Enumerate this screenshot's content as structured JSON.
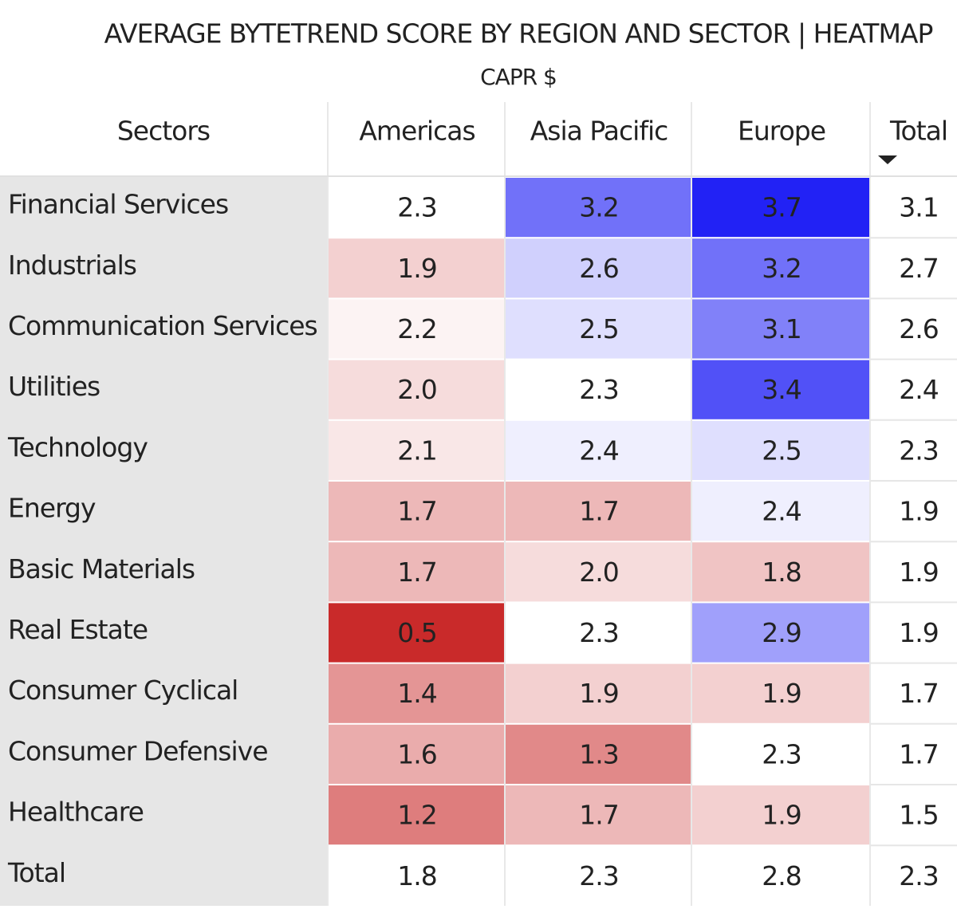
{
  "chart_data": {
    "type": "heatmap",
    "title": "AVERAGE BYTETREND SCORE BY REGION AND SECTOR | HEATMAP",
    "subtitle": "CAPR $",
    "row_header": "Sectors",
    "columns": [
      "Americas",
      "Asia Pacific",
      "Europe"
    ],
    "total_label": "Total",
    "categories": [
      "Financial Services",
      "Industrials",
      "Communication Services",
      "Utilities",
      "Technology",
      "Energy",
      "Basic Materials",
      "Real Estate",
      "Consumer Cyclical",
      "Consumer Defensive",
      "Healthcare"
    ],
    "values": [
      [
        2.3,
        3.2,
        3.7
      ],
      [
        1.9,
        2.6,
        3.2
      ],
      [
        2.2,
        2.5,
        3.1
      ],
      [
        2.0,
        2.3,
        3.4
      ],
      [
        2.1,
        2.4,
        2.5
      ],
      [
        1.7,
        1.7,
        2.4
      ],
      [
        1.7,
        2.0,
        1.8
      ],
      [
        0.5,
        2.3,
        2.9
      ],
      [
        1.4,
        1.9,
        1.9
      ],
      [
        1.6,
        1.3,
        2.3
      ],
      [
        1.2,
        1.7,
        1.9
      ]
    ],
    "value_labels": [
      [
        "2.3",
        "3.2",
        "3.7"
      ],
      [
        "1.9",
        "2.6",
        "3.2"
      ],
      [
        "2.2",
        "2.5",
        "3.1"
      ],
      [
        "2.0",
        "2.3",
        "3.4"
      ],
      [
        "2.1",
        "2.4",
        "2.5"
      ],
      [
        "1.7",
        "1.7",
        "2.4"
      ],
      [
        "1.7",
        "2.0",
        "1.8"
      ],
      [
        "0.5",
        "2.3",
        "2.9"
      ],
      [
        "1.4",
        "1.9",
        "1.9"
      ],
      [
        "1.6",
        "1.3",
        "2.3"
      ],
      [
        "1.2",
        "1.7",
        "1.9"
      ]
    ],
    "row_totals": [
      3.1,
      2.7,
      2.6,
      2.4,
      2.3,
      1.9,
      1.9,
      1.9,
      1.7,
      1.7,
      1.5
    ],
    "column_totals": [
      1.8,
      2.3,
      2.8
    ],
    "grand_total": 2.3,
    "colors": {
      "low": "#c92a2a",
      "mid": "#ffffff",
      "high": "#2222f5"
    }
  }
}
